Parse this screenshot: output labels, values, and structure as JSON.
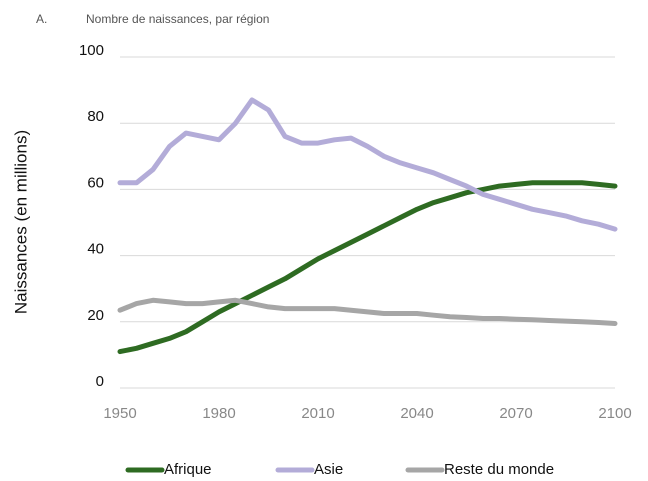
{
  "chart_data": {
    "type": "line",
    "label": "A.",
    "title": "Nombre de naissances, par région",
    "y_label": "Naissances (en millions)",
    "x": [
      1950,
      1955,
      1960,
      1965,
      1970,
      1975,
      1980,
      1985,
      1990,
      1995,
      2000,
      2005,
      2010,
      2015,
      2020,
      2025,
      2030,
      2035,
      2040,
      2045,
      2050,
      2055,
      2060,
      2065,
      2070,
      2075,
      2080,
      2085,
      2090,
      2095,
      2100
    ],
    "series": [
      {
        "name": "Afrique",
        "color": "#2e6b22",
        "values": [
          11,
          12,
          13.5,
          15,
          17,
          20,
          23,
          25.5,
          28,
          30.5,
          33,
          36,
          39,
          41.5,
          44,
          46.5,
          49,
          51.5,
          54,
          56,
          57.5,
          59,
          60,
          61,
          61.5,
          62,
          62,
          62,
          62,
          61.5,
          61
        ]
      },
      {
        "name": "Asie",
        "color": "#b3acd8",
        "values": [
          62,
          62,
          66,
          73,
          77,
          76,
          75,
          80,
          87,
          84,
          76,
          74,
          74,
          75,
          75.5,
          73,
          70,
          68,
          66.5,
          65,
          63,
          61,
          58.5,
          57,
          55.5,
          54,
          53,
          52,
          50.5,
          49.5,
          48
        ]
      },
      {
        "name": "Reste du monde",
        "color": "#a6a6a6",
        "values": [
          23.5,
          25.5,
          26.5,
          26,
          25.5,
          25.5,
          26,
          26.5,
          25.5,
          24.5,
          24,
          24,
          24,
          24,
          23.5,
          23,
          22.5,
          22.5,
          22.5,
          22,
          21.5,
          21.3,
          21,
          21,
          20.8,
          20.6,
          20.4,
          20.2,
          20,
          19.8,
          19.5
        ]
      }
    ],
    "xlim": [
      1950,
      2100
    ],
    "xticks": [
      1950,
      1980,
      2010,
      2040,
      2070,
      2100
    ],
    "ylim": [
      0,
      100
    ],
    "yticks": [
      0,
      20,
      40,
      60,
      80,
      100
    ],
    "grid": true,
    "legend": "bottom"
  }
}
